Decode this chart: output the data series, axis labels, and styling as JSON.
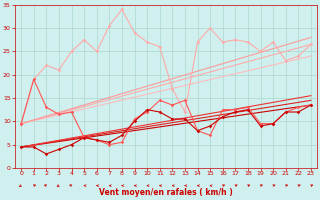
{
  "bg_color": "#cff0ee",
  "grid_color": "#aad8cc",
  "xlabel": "Vent moyen/en rafales ( km/h )",
  "xlabel_color": "#cc0000",
  "tick_color": "#cc0000",
  "xlim": [
    -0.5,
    23.5
  ],
  "ylim": [
    0,
    35
  ],
  "xticks": [
    0,
    1,
    2,
    3,
    4,
    5,
    6,
    7,
    8,
    9,
    10,
    11,
    12,
    13,
    14,
    15,
    16,
    17,
    18,
    19,
    20,
    21,
    22,
    23
  ],
  "yticks": [
    0,
    5,
    10,
    15,
    20,
    25,
    30,
    35
  ],
  "lines": [
    {
      "x": [
        0,
        1,
        2,
        3,
        4,
        5,
        6,
        7,
        8,
        9,
        10,
        11,
        12,
        13,
        14,
        15,
        16,
        17,
        18,
        19,
        20,
        21,
        22,
        23
      ],
      "y": [
        9.5,
        19,
        13,
        11.5,
        12,
        6.5,
        6,
        5,
        5.5,
        10.5,
        12,
        14.5,
        13.5,
        14.5,
        8,
        7,
        12.5,
        12.5,
        13,
        9.5,
        9.5,
        12,
        13,
        13.5
      ],
      "color": "#ff5555",
      "lw": 0.8,
      "marker": "D",
      "ms": 1.8,
      "zorder": 5,
      "linestyle": "-"
    },
    {
      "x": [
        0,
        1,
        2,
        3,
        4,
        5,
        6,
        7,
        8,
        9,
        10,
        11,
        12,
        13,
        14,
        15,
        16,
        17,
        18,
        19,
        20,
        21,
        22,
        23
      ],
      "y": [
        4.5,
        4.5,
        3,
        4,
        5,
        6.5,
        6,
        5.5,
        7,
        10,
        12.5,
        12,
        10.5,
        10.5,
        8,
        9,
        11,
        12,
        12.5,
        9,
        9.5,
        12,
        12,
        13.5
      ],
      "color": "#cc0000",
      "lw": 0.8,
      "marker": "D",
      "ms": 1.8,
      "zorder": 5,
      "linestyle": "-"
    },
    {
      "x": [
        0,
        1,
        2,
        3,
        4,
        5,
        6,
        7,
        8,
        9,
        10,
        11,
        12,
        13,
        14,
        15,
        16,
        17,
        18,
        19,
        20,
        21,
        22,
        23
      ],
      "y": [
        9.5,
        19,
        22,
        21,
        25,
        27.5,
        25,
        30.5,
        34,
        29,
        27,
        26,
        17,
        12,
        27,
        30,
        27,
        27.5,
        27,
        25,
        27,
        23,
        24,
        26.5
      ],
      "color": "#ffaaaa",
      "lw": 0.8,
      "marker": "D",
      "ms": 1.8,
      "zorder": 4,
      "linestyle": "-"
    },
    {
      "x": [
        0,
        23
      ],
      "y": [
        4.5,
        13.5
      ],
      "color": "#cc0000",
      "lw": 0.8,
      "marker": null,
      "ms": 0,
      "zorder": 3,
      "linestyle": "-"
    },
    {
      "x": [
        0,
        23
      ],
      "y": [
        4.5,
        14.5
      ],
      "color": "#dd2222",
      "lw": 0.8,
      "marker": null,
      "ms": 0,
      "zorder": 3,
      "linestyle": "-"
    },
    {
      "x": [
        0,
        23
      ],
      "y": [
        4.5,
        15.5
      ],
      "color": "#ee3333",
      "lw": 0.8,
      "marker": null,
      "ms": 0,
      "zorder": 3,
      "linestyle": "-"
    },
    {
      "x": [
        0,
        23
      ],
      "y": [
        9.5,
        24
      ],
      "color": "#ffbbbb",
      "lw": 0.8,
      "marker": null,
      "ms": 0,
      "zorder": 2,
      "linestyle": "-"
    },
    {
      "x": [
        0,
        23
      ],
      "y": [
        9.5,
        26.5
      ],
      "color": "#ffaaaa",
      "lw": 0.8,
      "marker": null,
      "ms": 0,
      "zorder": 2,
      "linestyle": "-"
    },
    {
      "x": [
        0,
        23
      ],
      "y": [
        9.5,
        28
      ],
      "color": "#ff9999",
      "lw": 0.8,
      "marker": null,
      "ms": 0,
      "zorder": 2,
      "linestyle": "-"
    }
  ],
  "wind_dirs": [
    225,
    45,
    315,
    225,
    315,
    270,
    270,
    270,
    270,
    270,
    270,
    270,
    270,
    270,
    270,
    270,
    45,
    45,
    45,
    45,
    45,
    45,
    45,
    45
  ]
}
